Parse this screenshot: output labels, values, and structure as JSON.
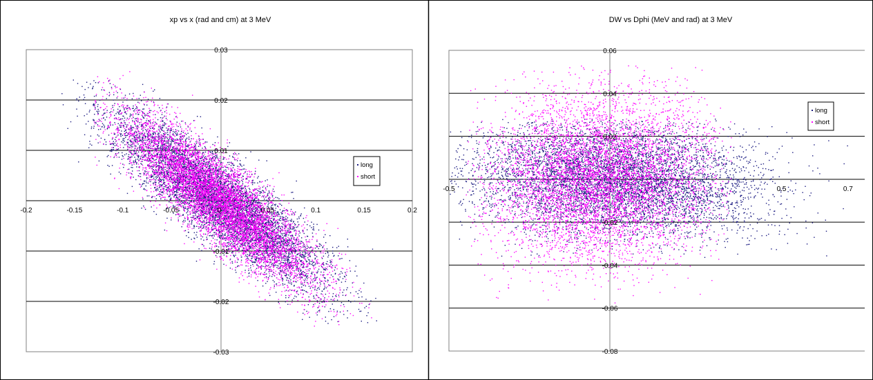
{
  "colors": {
    "long": "#1a1a80",
    "short": "#ff00ff",
    "grid": "#000000",
    "background": "#ffffff"
  },
  "chart_data": [
    {
      "type": "scatter",
      "title": "xp vs x (rad and cm) at 3 MeV",
      "xlim": [
        -0.2,
        0.2
      ],
      "ylim": [
        -0.03,
        0.03
      ],
      "xticks": [
        "-0.2",
        "-0.15",
        "-0.1",
        "-0.05",
        "0",
        "0.05",
        "0.1",
        "0.15",
        "0.2"
      ],
      "yticks": [
        "0.03",
        "0.02",
        "0.01",
        "0",
        "-0.01",
        "-0.02",
        "-0.03"
      ],
      "grid": "horizontal",
      "legend_position": "right",
      "series": [
        {
          "name": "long",
          "color": "#1a1a80",
          "point_count": 6500,
          "distribution": {
            "center": [
              0,
              0
            ],
            "sd_x": 0.055,
            "sd_y": 0.0085,
            "correlation": -0.87,
            "x_range": [
              -0.165,
              0.165
            ],
            "y_range": [
              -0.025,
              0.024
            ]
          }
        },
        {
          "name": "short",
          "color": "#ff00ff",
          "point_count": 6500,
          "distribution": {
            "center": [
              0,
              0
            ],
            "sd_x": 0.05,
            "sd_y": 0.0085,
            "correlation": -0.86,
            "x_range": [
              -0.13,
              0.16
            ],
            "y_range": [
              -0.025,
              0.026
            ]
          }
        }
      ]
    },
    {
      "type": "scatter",
      "title": "DW vs Dphi (MeV and rad) at 3 MeV",
      "xlim": [
        -0.5,
        0.8
      ],
      "ylim": [
        -0.08,
        0.06
      ],
      "xticks": [
        "-0.5",
        "0.5",
        "0.7"
      ],
      "yticks": [
        "0.06",
        "0.04",
        "0.02",
        "0",
        "-0.02",
        "-0.04",
        "-0.06",
        "-0.08"
      ],
      "grid": "horizontal",
      "legend_position": "right",
      "series": [
        {
          "name": "long",
          "color": "#1a1a80",
          "point_count": 6000,
          "distribution": {
            "center": [
              0.0,
              0.0
            ],
            "sd_x": 0.22,
            "sd_y": 0.013,
            "correlation": -0.15,
            "x_range": [
              -0.5,
              0.8
            ],
            "y_range": [
              -0.037,
              0.028
            ]
          }
        },
        {
          "name": "short",
          "color": "#ff00ff",
          "point_count": 6000,
          "distribution": {
            "center": [
              -0.05,
              0.0
            ],
            "sd_x": 0.17,
            "sd_y": 0.02,
            "correlation": 0.05,
            "x_range": [
              -0.45,
              0.35
            ],
            "y_range": [
              -0.058,
              0.053
            ]
          }
        }
      ]
    }
  ]
}
